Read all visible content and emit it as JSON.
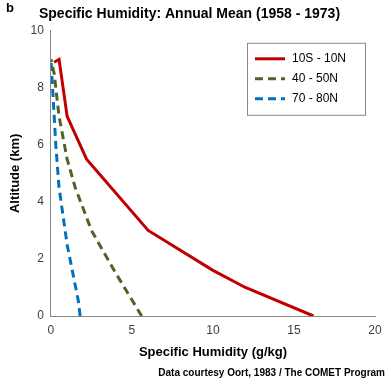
{
  "chart_data": {
    "type": "line",
    "title": "Specific Humidity: Annual Mean (1958 - 1973)",
    "panel_label": "b",
    "source": "Data courtesy Oort, 1983 / The COMET Program",
    "x_label": "Specific Humidity (g/kg)",
    "y_label": "Altitude (km)",
    "xlim": [
      0,
      20
    ],
    "xticks": [
      0,
      5,
      10,
      15,
      20
    ],
    "ylim": [
      0,
      10
    ],
    "yticks": [
      0,
      2,
      4,
      6,
      8,
      10
    ],
    "grid": false,
    "legend": "top-right",
    "series": [
      {
        "name": "10S - 10N",
        "color": "#c00000",
        "line_style": "solid",
        "marker": "none",
        "x": [
          16.2,
          12,
          10,
          6,
          2.2,
          1.0,
          0.5,
          0.2
        ],
        "y": [
          0,
          1,
          1.6,
          3,
          5.5,
          7,
          9,
          8.9
        ]
      },
      {
        "name": "40 - 50N",
        "color": "#4f6228",
        "line_style": "dashed",
        "marker": "none",
        "x": [
          5.6,
          4,
          2.5,
          1.5,
          1.0,
          0.5,
          0.2,
          0
        ],
        "y": [
          0,
          1.5,
          3,
          4.5,
          5.5,
          7,
          8.5,
          9
        ]
      },
      {
        "name": "70 - 80N",
        "color": "#0070c0",
        "line_style": "dashed",
        "marker": "none",
        "x": [
          1.8,
          1.7,
          1.0,
          0.5,
          0.3,
          0.1,
          0
        ],
        "y": [
          0,
          0.5,
          2.5,
          4.5,
          6,
          8,
          9
        ]
      }
    ]
  }
}
